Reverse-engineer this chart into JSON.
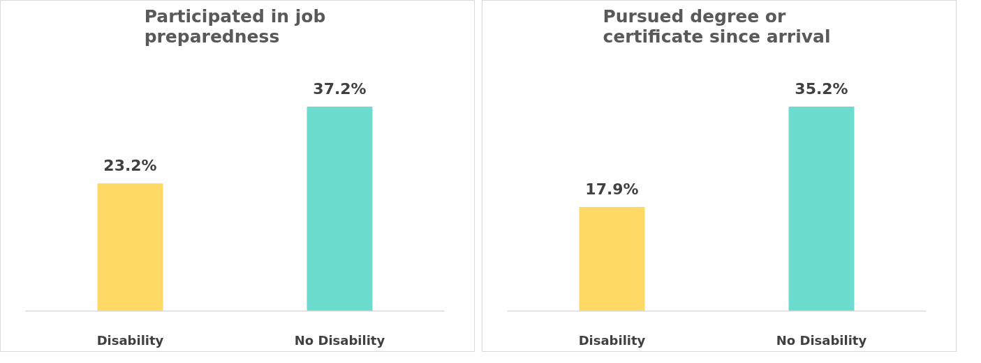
{
  "chart_data": [
    {
      "type": "bar",
      "title": "Participated in job preparedness",
      "categories": [
        "Disability",
        "No Disability"
      ],
      "colors": [
        "#ffd966",
        "#6cdccf"
      ],
      "values": [
        23.2,
        37.2
      ],
      "value_labels": [
        "23.2%",
        "37.2%"
      ],
      "grid": false,
      "tick_labels": "x"
    },
    {
      "type": "bar",
      "title": "Pursued degree or certificate since arrival",
      "categories": [
        "Disability",
        "No Disability"
      ],
      "colors": [
        "#ffd966",
        "#6cdccf"
      ],
      "values": [
        17.9,
        35.2
      ],
      "value_labels": [
        "17.9%",
        "35.2%"
      ],
      "grid": false,
      "tick_labels": "x"
    }
  ]
}
